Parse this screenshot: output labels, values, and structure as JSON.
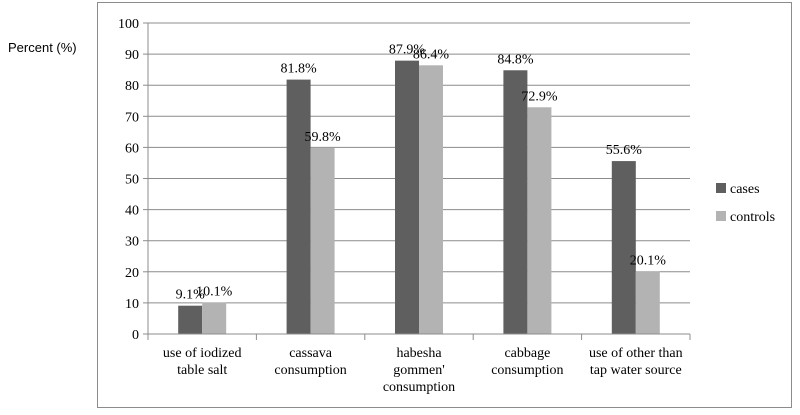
{
  "chart_data": {
    "type": "bar",
    "title": "",
    "xlabel": "",
    "ylabel": "Percent (%)",
    "ylim": [
      0,
      100
    ],
    "yticks": [
      0,
      10,
      20,
      30,
      40,
      50,
      60,
      70,
      80,
      90,
      100
    ],
    "grid": "horizontal",
    "legend_position": "right",
    "categories": [
      [
        "use of iodized",
        "table salt"
      ],
      [
        "cassava",
        "consumption"
      ],
      [
        "habesha",
        "gommen'",
        "consumption"
      ],
      [
        "cabbage",
        "consumption"
      ],
      [
        "use of other than",
        "tap water source"
      ]
    ],
    "series": [
      {
        "name": "cases",
        "color": "#5f5f5f",
        "values": [
          9.1,
          81.8,
          87.9,
          84.8,
          55.6
        ],
        "labels": [
          "9.1%",
          "81.8%",
          "87.9%",
          "84.8%",
          "55.6%"
        ]
      },
      {
        "name": "controls",
        "color": "#b3b3b3",
        "values": [
          10.1,
          59.8,
          86.4,
          72.9,
          20.1
        ],
        "labels": [
          "10.1%",
          "59.8%",
          "86.4%",
          "72.9%",
          "20.1%"
        ]
      }
    ]
  }
}
